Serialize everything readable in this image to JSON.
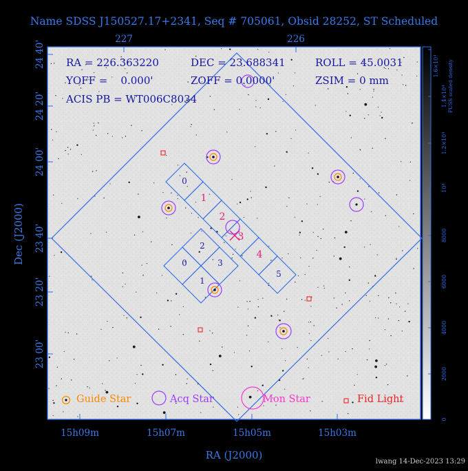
{
  "title": "Name SDSS J150527.17+2341, Seq # 705061, Obsid 28252, ST Scheduled",
  "colors": {
    "frame": "#2e6be8",
    "title": "#3a7ae8",
    "guide": "#ff8800",
    "acq": "#9c3cff",
    "mon": "#ff33cc",
    "fid": "#ee2222",
    "chip_label": "#1a1aa8",
    "s_chip_label": "#e0207a",
    "info_text": "#1515a0",
    "footer_text": "#cccccc"
  },
  "info": {
    "ra": "RA = 226.363220",
    "dec": "DEC = 23.688341",
    "roll": "ROLL = 45.0031",
    "yoff": "YOFF =    0.000'",
    "zoff": "ZOFF = 0.0000'",
    "zsim": "ZSIM = 0 mm",
    "acis": "ACIS PB = WT006C8034"
  },
  "axes": {
    "x_label": "RA (J2000)",
    "y_label": "Dec (J2000)",
    "x_ticks": [
      "15h09m",
      "15h07m",
      "15h05m",
      "15h03m"
    ],
    "top_ticks": [
      "227",
      "226"
    ],
    "y_ticks": [
      "24 40'",
      "24 20'",
      "24 00'",
      "23 40'",
      "23 20'",
      "23 00'"
    ]
  },
  "chips": {
    "s_array": [
      "0",
      "1",
      "2",
      "3",
      "4",
      "5"
    ],
    "i_array": [
      "2",
      "0",
      "3",
      "1"
    ]
  },
  "legend": {
    "guide": "Guide Star",
    "acq": "Acq Star",
    "mon": "Mon Star",
    "fid": "Fid Light"
  },
  "colorbar": {
    "label": "PUSS scaled density",
    "ticks": [
      "0",
      "2000",
      "4000",
      "6000",
      "8000",
      "10⁴",
      "1.2×10⁴",
      "1.4×10⁴",
      "1.6×10⁴"
    ]
  },
  "markers": {
    "acq_count": 7,
    "guide_count": 5,
    "fid_count": 3
  },
  "footer": "lwang 14-Dec-2023 13:29"
}
